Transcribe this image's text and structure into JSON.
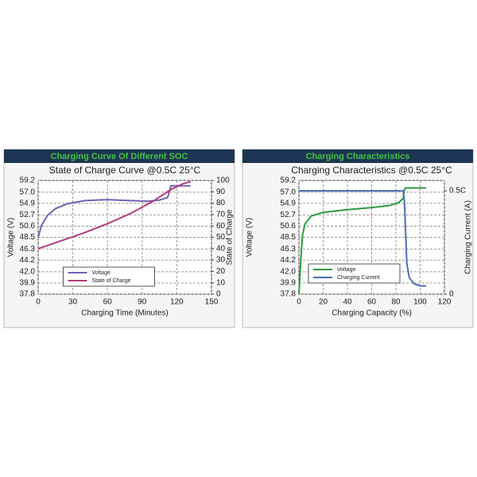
{
  "chart_data": [
    {
      "type": "line",
      "header": "Charging Curve Of Different SOC",
      "title": "State of Charge Curve @0.5C 25°C",
      "x_label": "Charging Time (Minutes)",
      "y_label": "Voltage (V)",
      "y2_label": "State of Charge",
      "xlim": [
        0,
        150
      ],
      "xticks": [
        0,
        30,
        60,
        90,
        120,
        150
      ],
      "ylim": [
        37.8,
        59.2
      ],
      "yticks": [
        59.2,
        {
          "value": 57.0,
          "label": "57.0"
        },
        54.9,
        52.7,
        50.6,
        48.5,
        46.3,
        44.2,
        {
          "value": 42.0,
          "label": "42.0"
        },
        39.9,
        37.8
      ],
      "y2lim": [
        0,
        100
      ],
      "y2ticks": [
        100,
        90,
        80,
        70,
        60,
        50,
        40,
        30,
        20,
        10,
        0
      ],
      "grid": true,
      "legend": "lower center",
      "series": [
        {
          "name": "Voltage",
          "color": "#7062b4",
          "x": [
            0,
            3,
            8,
            15,
            25,
            40,
            60,
            80,
            95,
            105,
            112,
            114,
            115,
            132
          ],
          "values": [
            48.5,
            50.8,
            52.6,
            53.9,
            54.8,
            55.4,
            55.6,
            55.4,
            55.3,
            55.5,
            56.0,
            57.5,
            58.2,
            58.2
          ]
        },
        {
          "name": "State of Charge",
          "color": "#b23c7c",
          "axis": "y2",
          "x": [
            0,
            20,
            40,
            60,
            80,
            100,
            115,
            125,
            132
          ],
          "values": [
            40,
            47,
            54,
            62,
            71,
            82,
            92,
            97,
            99
          ]
        }
      ]
    },
    {
      "type": "line",
      "header": "Charging Characteristics",
      "title": "Charging Characteristics @0.5C 25°C",
      "x_label": "Charging Capacity (%)",
      "y_label": "Voltage (V)",
      "y2_label": "Charging Current (A)",
      "xlim": [
        0,
        120
      ],
      "xticks": [
        0,
        20,
        40,
        60,
        80,
        100,
        120
      ],
      "ylim": [
        37.8,
        59.2
      ],
      "yticks": [
        59.2,
        {
          "value": 57.0,
          "label": "57.0"
        },
        54.9,
        52.7,
        50.6,
        48.5,
        46.3,
        44.2,
        {
          "value": 42.0,
          "label": "42.0"
        },
        39.9,
        37.8
      ],
      "y2lim": [
        0,
        0.55
      ],
      "y2ticks": [
        {
          "value": 0.5,
          "label": "0.5C"
        },
        0
      ],
      "grid": true,
      "legend": "lower left",
      "series": [
        {
          "name": "Voltage",
          "color": "#2b9b3c",
          "x": [
            0,
            1,
            2,
            3,
            5,
            10,
            20,
            40,
            60,
            75,
            82,
            86,
            87,
            88,
            105
          ],
          "values": [
            37.8,
            42,
            46,
            49,
            51,
            52.5,
            53.2,
            53.7,
            54.1,
            54.5,
            55,
            55.8,
            57.5,
            57.8,
            57.8
          ]
        },
        {
          "name": "Charging Current",
          "color": "#4a70b2",
          "axis": "y2",
          "x": [
            0,
            86,
            87,
            88,
            89,
            91,
            95,
            100,
            105
          ],
          "values": [
            0.5,
            0.5,
            0.45,
            0.3,
            0.15,
            0.08,
            0.05,
            0.04,
            0.04
          ]
        }
      ]
    }
  ]
}
